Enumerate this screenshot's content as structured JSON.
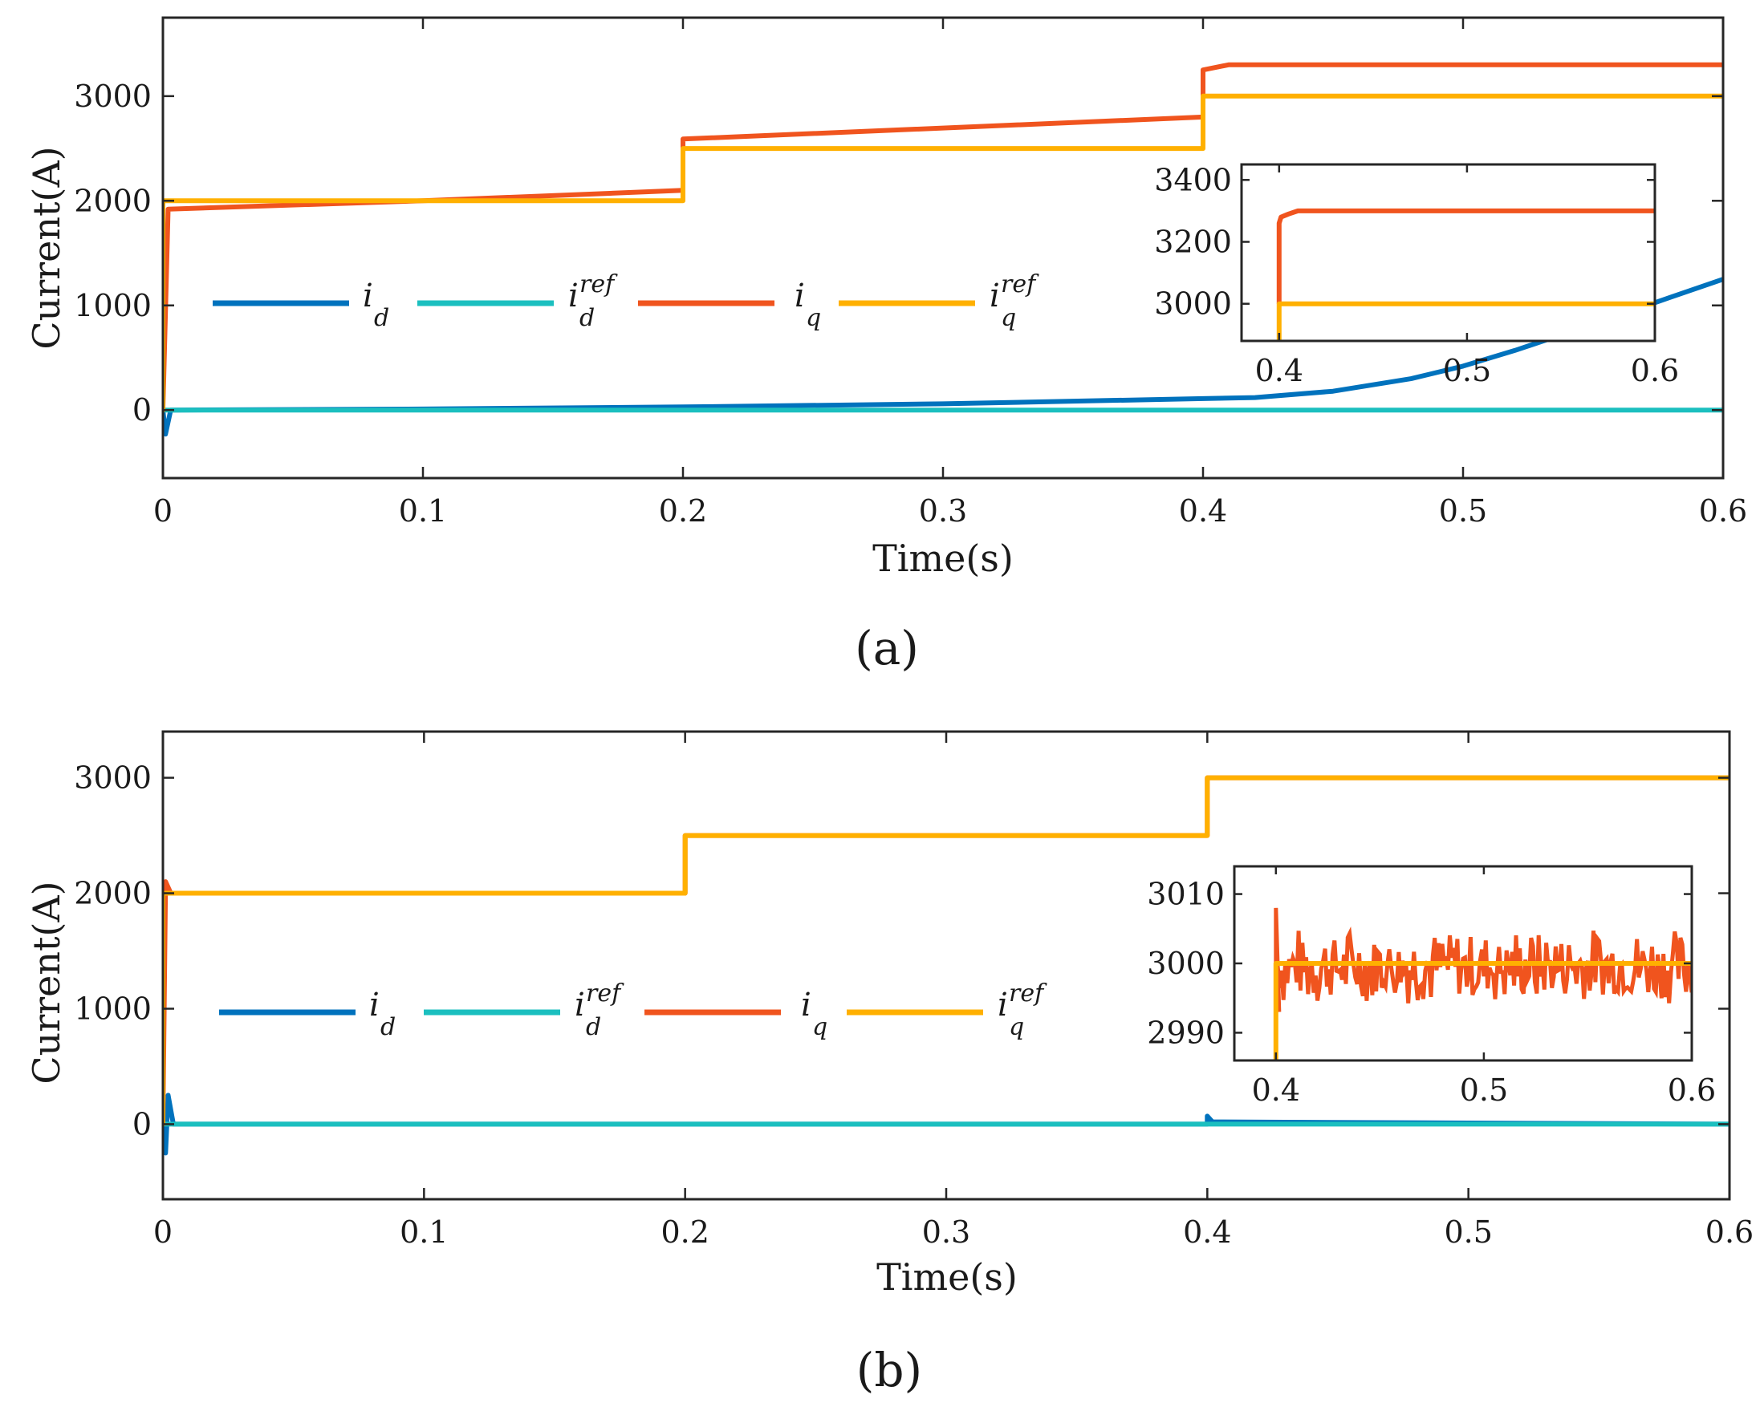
{
  "chart_data": [
    {
      "panel_label": "(a)",
      "type": "line",
      "xlabel": "Time(s)",
      "ylabel": "Current(A)",
      "xlim": [
        0,
        0.6
      ],
      "ylim": [
        -650,
        3750
      ],
      "xticks": [
        0,
        0.1,
        0.2,
        0.3,
        0.4,
        0.5,
        0.6
      ],
      "xtick_labels": [
        "0",
        "0.1",
        "0.2",
        "0.3",
        "0.4",
        "0.5",
        "0.6"
      ],
      "yticks": [
        0,
        1000,
        2000,
        3000
      ],
      "ytick_labels": [
        "0",
        "1000",
        "2000",
        "3000"
      ],
      "legend": {
        "placement": "middle-left",
        "orientation": "horizontal"
      },
      "series": [
        {
          "name": "i_d",
          "label_main": "i",
          "label_sub": "d",
          "label_sup": "",
          "color": "#0072BD",
          "x": [
            0,
            0.001,
            0.003,
            0.1,
            0.2,
            0.3,
            0.4,
            0.42,
            0.45,
            0.48,
            0.5,
            0.52,
            0.55,
            0.58,
            0.6
          ],
          "y": [
            0,
            -230,
            0,
            10,
            30,
            60,
            110,
            120,
            180,
            300,
            420,
            570,
            820,
            1080,
            1250
          ]
        },
        {
          "name": "i_d^ref",
          "label_main": "i",
          "label_sub": "d",
          "label_sup": "ref",
          "color": "#1BBFBF",
          "x": [
            0,
            0.6
          ],
          "y": [
            0,
            0
          ]
        },
        {
          "name": "i_q",
          "label_main": "i",
          "label_sub": "q",
          "label_sup": "",
          "color": "#F0541E",
          "x": [
            0,
            0.002,
            0.1,
            0.2,
            0.2,
            0.4,
            0.4,
            0.41,
            0.6
          ],
          "y": [
            0,
            1920,
            2000,
            2100,
            2590,
            2800,
            3250,
            3300,
            3300
          ]
        },
        {
          "name": "i_q^ref",
          "label_main": "i",
          "label_sub": "q",
          "label_sup": "ref",
          "color": "#FFB000",
          "x": [
            0,
            0,
            0.2,
            0.2,
            0.4,
            0.4,
            0.6
          ],
          "y": [
            0,
            2000,
            2000,
            2500,
            2500,
            3000,
            3000
          ]
        }
      ],
      "inset": {
        "xlim": [
          0.38,
          0.6
        ],
        "ylim": [
          2880,
          3450
        ],
        "xticks": [
          0.4,
          0.5,
          0.6
        ],
        "xtick_labels": [
          "0.4",
          "0.5",
          "0.6"
        ],
        "yticks": [
          3000,
          3200,
          3400
        ],
        "ytick_labels": [
          "3000",
          "3200",
          "3400"
        ],
        "series": [
          {
            "name": "i_q",
            "color": "#F0541E",
            "x": [
              0.4,
              0.4,
              0.401,
              0.405,
              0.41,
              0.6
            ],
            "y": [
              3000,
              3260,
              3280,
              3290,
              3300,
              3300
            ]
          },
          {
            "name": "i_q^ref",
            "color": "#FFB000",
            "x": [
              0.4,
              0.4,
              0.6
            ],
            "y": [
              2880,
              3000,
              3000
            ]
          }
        ]
      }
    },
    {
      "panel_label": "(b)",
      "type": "line",
      "xlabel": "Time(s)",
      "ylabel": "Current(A)",
      "xlim": [
        0,
        0.6
      ],
      "ylim": [
        -650,
        3400
      ],
      "xticks": [
        0,
        0.1,
        0.2,
        0.3,
        0.4,
        0.5,
        0.6
      ],
      "xtick_labels": [
        "0",
        "0.1",
        "0.2",
        "0.3",
        "0.4",
        "0.5",
        "0.6"
      ],
      "yticks": [
        0,
        1000,
        2000,
        3000
      ],
      "ytick_labels": [
        "0",
        "1000",
        "2000",
        "3000"
      ],
      "legend": {
        "placement": "middle-left",
        "orientation": "horizontal"
      },
      "series": [
        {
          "name": "i_d",
          "label_main": "i",
          "label_sub": "d",
          "label_sup": "",
          "color": "#0072BD",
          "x": [
            0,
            0.001,
            0.002,
            0.004,
            0.2,
            0.4,
            0.4,
            0.402,
            0.6
          ],
          "y": [
            0,
            -250,
            250,
            0,
            0,
            0,
            70,
            20,
            0
          ]
        },
        {
          "name": "i_d^ref",
          "label_main": "i",
          "label_sub": "d",
          "label_sup": "ref",
          "color": "#1BBFBF",
          "x": [
            0,
            0.6
          ],
          "y": [
            0,
            0
          ]
        },
        {
          "name": "i_q",
          "label_main": "i",
          "label_sub": "q",
          "label_sup": "",
          "color": "#F0541E",
          "x": [
            0,
            0.001,
            0.003,
            0.2,
            0.2,
            0.4,
            0.4,
            0.6
          ],
          "y": [
            0,
            2100,
            2000,
            2000,
            2500,
            2500,
            3000,
            3000
          ]
        },
        {
          "name": "i_q^ref",
          "label_main": "i",
          "label_sub": "q",
          "label_sup": "ref",
          "color": "#FFB000",
          "x": [
            0,
            0,
            0.2,
            0.2,
            0.4,
            0.4,
            0.6
          ],
          "y": [
            0,
            2000,
            2000,
            2500,
            2500,
            3000,
            3000
          ]
        }
      ],
      "inset": {
        "xlim": [
          0.38,
          0.6
        ],
        "ylim": [
          2986,
          3014
        ],
        "xticks": [
          0.4,
          0.5,
          0.6
        ],
        "xtick_labels": [
          "0.4",
          "0.5",
          "0.6"
        ],
        "yticks": [
          2990,
          3000,
          3010
        ],
        "ytick_labels": [
          "2990",
          "3000",
          "3010"
        ],
        "iq_noise": {
          "start": 0.4,
          "end": 0.6,
          "mean": 2999.5,
          "low": 2993,
          "high": 3005,
          "spike": 3008
        },
        "series": [
          {
            "name": "i_q^ref",
            "color": "#FFB000",
            "x": [
              0.4,
              0.4,
              0.6
            ],
            "y": [
              2986,
              3000,
              3000
            ]
          }
        ]
      }
    }
  ]
}
